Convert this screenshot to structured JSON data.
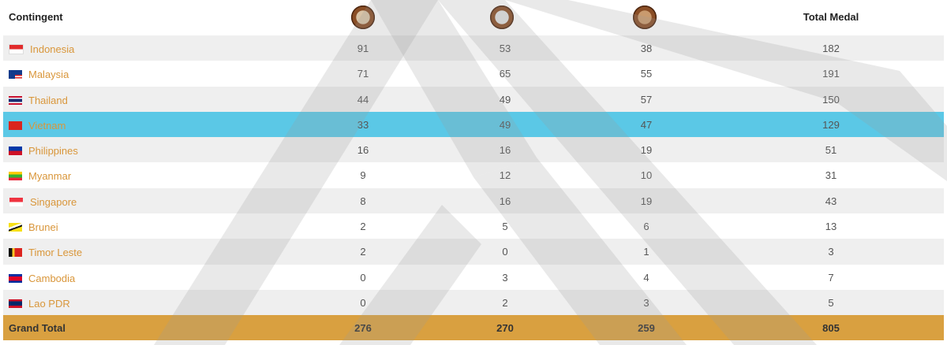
{
  "header": {
    "contingent_label": "Contingent",
    "gold_icon": "gold-medal-icon",
    "silver_icon": "silver-medal-icon",
    "bronze_icon": "bronze-medal-icon",
    "total_label": "Total Medal"
  },
  "rows": [
    {
      "country": "Indonesia",
      "flag": "indonesia-flag-icon",
      "gold": "91",
      "silver": "53",
      "bronze": "38",
      "total": "182"
    },
    {
      "country": "Malaysia",
      "flag": "malaysia-flag-icon",
      "gold": "71",
      "silver": "65",
      "bronze": "55",
      "total": "191"
    },
    {
      "country": "Thailand",
      "flag": "thailand-flag-icon",
      "gold": "44",
      "silver": "49",
      "bronze": "57",
      "total": "150"
    },
    {
      "country": "Vietnam",
      "flag": "vietnam-flag-icon",
      "gold": "33",
      "silver": "49",
      "bronze": "47",
      "total": "129"
    },
    {
      "country": "Philippines",
      "flag": "philippines-flag-icon",
      "gold": "16",
      "silver": "16",
      "bronze": "19",
      "total": "51"
    },
    {
      "country": "Myanmar",
      "flag": "myanmar-flag-icon",
      "gold": "9",
      "silver": "12",
      "bronze": "10",
      "total": "31"
    },
    {
      "country": "Singapore",
      "flag": "singapore-flag-icon",
      "gold": "8",
      "silver": "16",
      "bronze": "19",
      "total": "43"
    },
    {
      "country": "Brunei",
      "flag": "brunei-flag-icon",
      "gold": "2",
      "silver": "5",
      "bronze": "6",
      "total": "13"
    },
    {
      "country": "Timor Leste",
      "flag": "timor-leste-flag-icon",
      "gold": "2",
      "silver": "0",
      "bronze": "1",
      "total": "3"
    },
    {
      "country": "Cambodia",
      "flag": "cambodia-flag-icon",
      "gold": "0",
      "silver": "3",
      "bronze": "4",
      "total": "7"
    },
    {
      "country": "Lao PDR",
      "flag": "lao-flag-icon",
      "gold": "0",
      "silver": "2",
      "bronze": "3",
      "total": "5"
    }
  ],
  "grand_total": {
    "label": "Grand Total",
    "gold": "276",
    "silver": "270",
    "bronze": "259",
    "total": "805"
  },
  "colors": {
    "highlight_row": "#5bc8e6",
    "total_row": "#d9a040",
    "country_link": "#d9963a",
    "stripe": "#efefef"
  }
}
